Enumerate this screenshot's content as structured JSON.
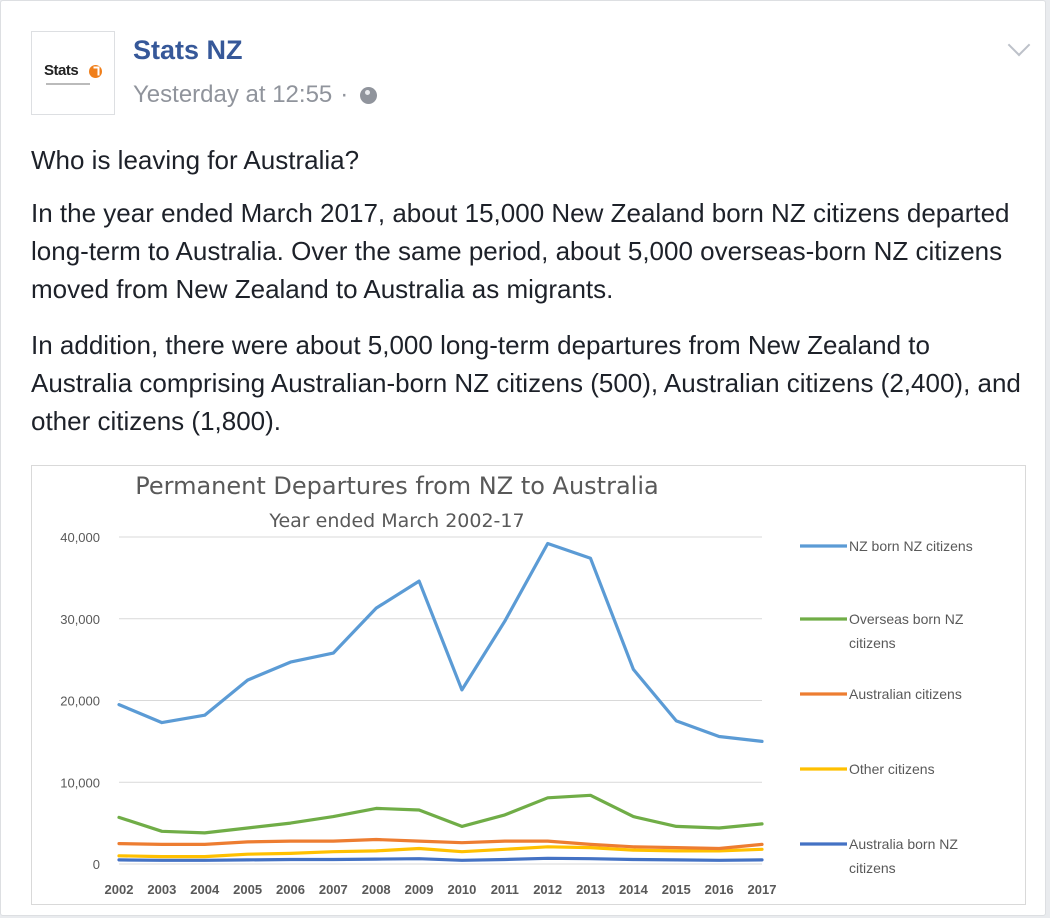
{
  "post": {
    "page_name": "Stats NZ",
    "avatar_text": "Stats",
    "timestamp": "Yesterday at 12:55",
    "separator": "·",
    "paragraphs": [
      "Who is leaving for Australia?",
      "In the year ended March 2017, about 15,000 New Zealand born NZ citizens departed long-term to Australia. Over the same period, about 5,000 overseas-born NZ citizens moved from New Zealand to Australia as migrants.",
      "In addition, there were about 5,000 long-term departures from New Zealand to Australia comprising Australian-born NZ citizens (500), Australian citizens (2,400), and other citizens (1,800)."
    ]
  },
  "icons": {
    "globe": "globe-icon",
    "menu": "chevron-down-icon"
  },
  "chart_data": {
    "type": "line",
    "title": "Permanent Departures from NZ to Australia",
    "subtitle": "Year ended March 2002-17",
    "xlabel": "",
    "ylabel": "",
    "x": [
      "2002",
      "2003",
      "2004",
      "2005",
      "2006",
      "2007",
      "2008",
      "2009",
      "2010",
      "2011",
      "2012",
      "2013",
      "2014",
      "2015",
      "2016",
      "2017"
    ],
    "ylim": [
      0,
      40000
    ],
    "yticks": [
      0,
      10000,
      20000,
      30000,
      40000
    ],
    "ytick_labels": [
      "0",
      "10,000",
      "20,000",
      "30,000",
      "40,000"
    ],
    "grid": true,
    "legend_position": "right",
    "series": [
      {
        "name": "NZ born NZ citizens",
        "color": "#5b9bd5",
        "values": [
          19500,
          17300,
          18200,
          22500,
          24700,
          25800,
          31300,
          34600,
          21300,
          29700,
          39200,
          37400,
          23800,
          17500,
          15600,
          15000
        ]
      },
      {
        "name": "Overseas born NZ citizens",
        "color": "#70ad47",
        "values": [
          5700,
          4000,
          3800,
          4400,
          5000,
          5800,
          6800,
          6600,
          4600,
          6000,
          8100,
          8400,
          5800,
          4600,
          4400,
          4900
        ]
      },
      {
        "name": "Australian citizens",
        "color": "#ed7d31",
        "values": [
          2500,
          2400,
          2400,
          2700,
          2800,
          2800,
          3000,
          2800,
          2600,
          2800,
          2800,
          2400,
          2100,
          2000,
          1900,
          2400
        ]
      },
      {
        "name": "Other citizens",
        "color": "#ffc000",
        "values": [
          1000,
          900,
          900,
          1200,
          1300,
          1500,
          1600,
          1900,
          1500,
          1800,
          2100,
          2000,
          1700,
          1600,
          1600,
          1800
        ]
      },
      {
        "name": "Australia born NZ citizens",
        "color": "#4472c4",
        "values": [
          500,
          450,
          450,
          500,
          550,
          550,
          600,
          650,
          450,
          550,
          700,
          650,
          550,
          500,
          450,
          500
        ]
      }
    ]
  }
}
